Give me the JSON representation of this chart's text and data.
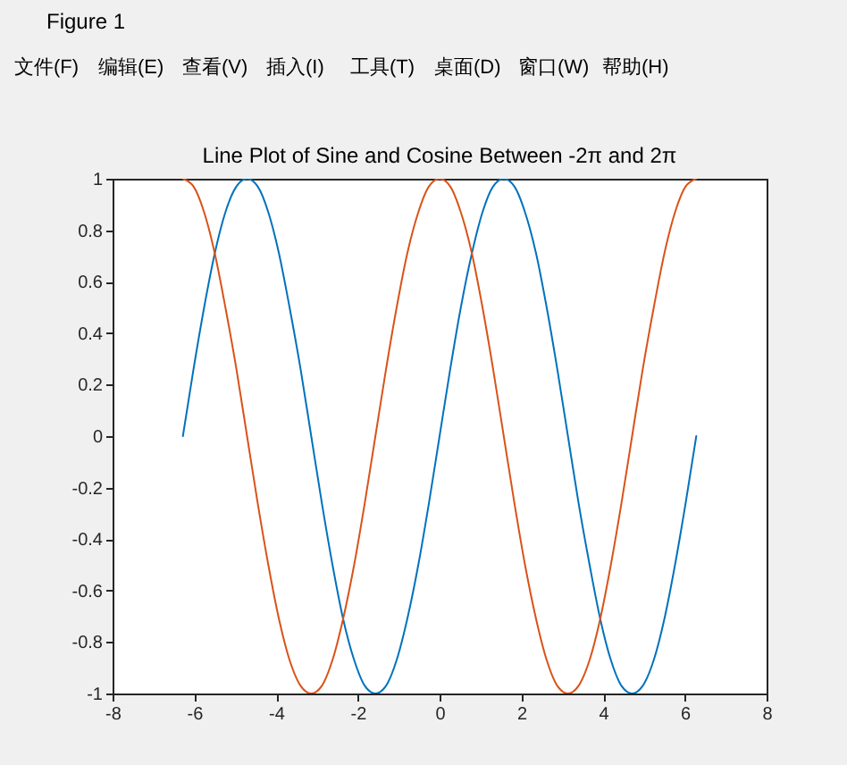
{
  "chart_data": {
    "type": "line",
    "title": "Line Plot of Sine and Cosine Between -2π and 2π",
    "annotations": [
      "Figure 1",
      "文件(F)",
      "编辑(E)",
      "查看(V)",
      "插入(I)",
      "工具(T)",
      "桌面(D)",
      "窗口(W)",
      "帮助(H)"
    ],
    "x": [
      -6.28,
      -6.02,
      -5.76,
      -5.5,
      -5.24,
      -4.97,
      -4.71,
      -4.45,
      -4.19,
      -3.93,
      -3.67,
      -3.4,
      -3.14,
      -2.88,
      -2.62,
      -2.36,
      -2.09,
      -1.83,
      -1.57,
      -1.31,
      -1.05,
      -0.79,
      -0.52,
      -0.26,
      0,
      0.26,
      0.52,
      0.79,
      1.05,
      1.31,
      1.57,
      1.83,
      2.09,
      2.36,
      2.62,
      2.88,
      3.14,
      3.4,
      3.67,
      3.93,
      4.19,
      4.45,
      4.71,
      4.97,
      5.24,
      5.5,
      5.76,
      6.02,
      6.28
    ],
    "series": [
      {
        "color": "#0072bd",
        "values": [
          0,
          0.26,
          0.5,
          0.71,
          0.87,
          0.97,
          1,
          0.97,
          0.87,
          0.71,
          0.5,
          0.26,
          0,
          -0.26,
          -0.5,
          -0.71,
          -0.87,
          -0.97,
          -1,
          -0.97,
          -0.87,
          -0.71,
          -0.5,
          -0.26,
          0,
          0.26,
          0.5,
          0.71,
          0.87,
          0.97,
          1,
          0.97,
          0.87,
          0.71,
          0.5,
          0.26,
          0,
          -0.26,
          -0.5,
          -0.71,
          -0.87,
          -0.97,
          -1,
          -0.97,
          -0.87,
          -0.71,
          -0.5,
          -0.26,
          0
        ]
      },
      {
        "color": "#d95319",
        "values": [
          1,
          0.97,
          0.87,
          0.71,
          0.5,
          0.26,
          0,
          -0.26,
          -0.5,
          -0.71,
          -0.87,
          -0.97,
          -1,
          -0.97,
          -0.87,
          -0.71,
          -0.5,
          -0.26,
          0,
          0.26,
          0.5,
          0.71,
          0.87,
          0.97,
          1,
          0.97,
          0.87,
          0.71,
          0.5,
          0.26,
          0,
          -0.26,
          -0.5,
          -0.71,
          -0.87,
          -0.97,
          -1,
          -0.97,
          -0.87,
          -0.71,
          -0.5,
          -0.26,
          0,
          0.26,
          0.5,
          0.71,
          0.87,
          0.97,
          1
        ]
      }
    ],
    "xlim": [
      -8,
      8
    ],
    "xticks": [
      -8,
      -6,
      -4,
      -2,
      0,
      2,
      4,
      6,
      8
    ],
    "ylim": [
      -1,
      1
    ],
    "yticks": [
      -1,
      -0.8,
      -0.6,
      -0.4,
      -0.2,
      0,
      0.2,
      0.4,
      0.6,
      0.8,
      1
    ],
    "grid": false
  }
}
